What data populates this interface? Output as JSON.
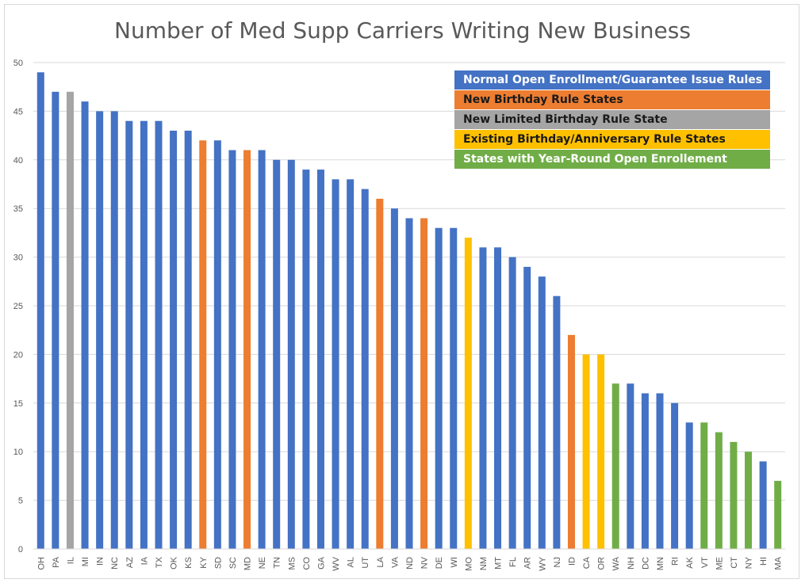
{
  "chart_data": {
    "type": "bar",
    "title": "Number of Med Supp Carriers Writing New Business",
    "xlabel": "",
    "ylabel": "",
    "ylim": [
      0,
      50
    ],
    "yticks": [
      0,
      5,
      10,
      15,
      20,
      25,
      30,
      35,
      40,
      45,
      50
    ],
    "grid": true,
    "legend_position": "top-right",
    "categories": [
      "OH",
      "PA",
      "IL",
      "MI",
      "IN",
      "NC",
      "AZ",
      "IA",
      "TX",
      "OK",
      "KS",
      "KY",
      "SD",
      "SC",
      "MD",
      "NE",
      "TN",
      "MS",
      "CO",
      "GA",
      "WV",
      "AL",
      "UT",
      "LA",
      "VA",
      "ND",
      "NV",
      "DE",
      "WI",
      "MO",
      "NM",
      "MT",
      "FL",
      "AR",
      "WY",
      "NJ",
      "ID",
      "CA",
      "OR",
      "WA",
      "NH",
      "DC",
      "MN",
      "RI",
      "AK",
      "VT",
      "ME",
      "CT",
      "NY",
      "HI",
      "MA"
    ],
    "values": [
      49,
      47,
      47,
      46,
      45,
      45,
      44,
      44,
      44,
      43,
      43,
      42,
      42,
      41,
      41,
      41,
      40,
      40,
      39,
      39,
      38,
      38,
      37,
      36,
      35,
      34,
      34,
      33,
      33,
      32,
      31,
      31,
      30,
      29,
      28,
      26,
      22,
      20,
      20,
      17,
      17,
      16,
      16,
      15,
      13,
      13,
      12,
      11,
      10,
      9,
      7
    ],
    "groups": [
      "normal",
      "normal",
      "limited",
      "normal",
      "normal",
      "normal",
      "normal",
      "normal",
      "normal",
      "normal",
      "normal",
      "birthday",
      "normal",
      "normal",
      "birthday",
      "normal",
      "normal",
      "normal",
      "normal",
      "normal",
      "normal",
      "normal",
      "normal",
      "birthday",
      "normal",
      "normal",
      "birthday",
      "normal",
      "normal",
      "existing",
      "normal",
      "normal",
      "normal",
      "normal",
      "normal",
      "normal",
      "birthday",
      "existing",
      "existing",
      "yearround",
      "normal",
      "normal",
      "normal",
      "normal",
      "normal",
      "yearround",
      "yearround",
      "yearround",
      "yearround",
      "normal",
      "yearround"
    ],
    "legend": [
      {
        "key": "normal",
        "label": "Normal Open Enrollment/Guarantee Issue Rules",
        "color": "#4472C4"
      },
      {
        "key": "birthday",
        "label": "New Birthday Rule States",
        "color": "#ED7D31"
      },
      {
        "key": "limited",
        "label": "New Limited Birthday Rule State",
        "color": "#A5A5A5"
      },
      {
        "key": "existing",
        "label": "Existing Birthday/Anniversary Rule States",
        "color": "#FFC000"
      },
      {
        "key": "yearround",
        "label": "States with Year-Round Open Enrollement",
        "color": "#70AD47"
      }
    ]
  }
}
